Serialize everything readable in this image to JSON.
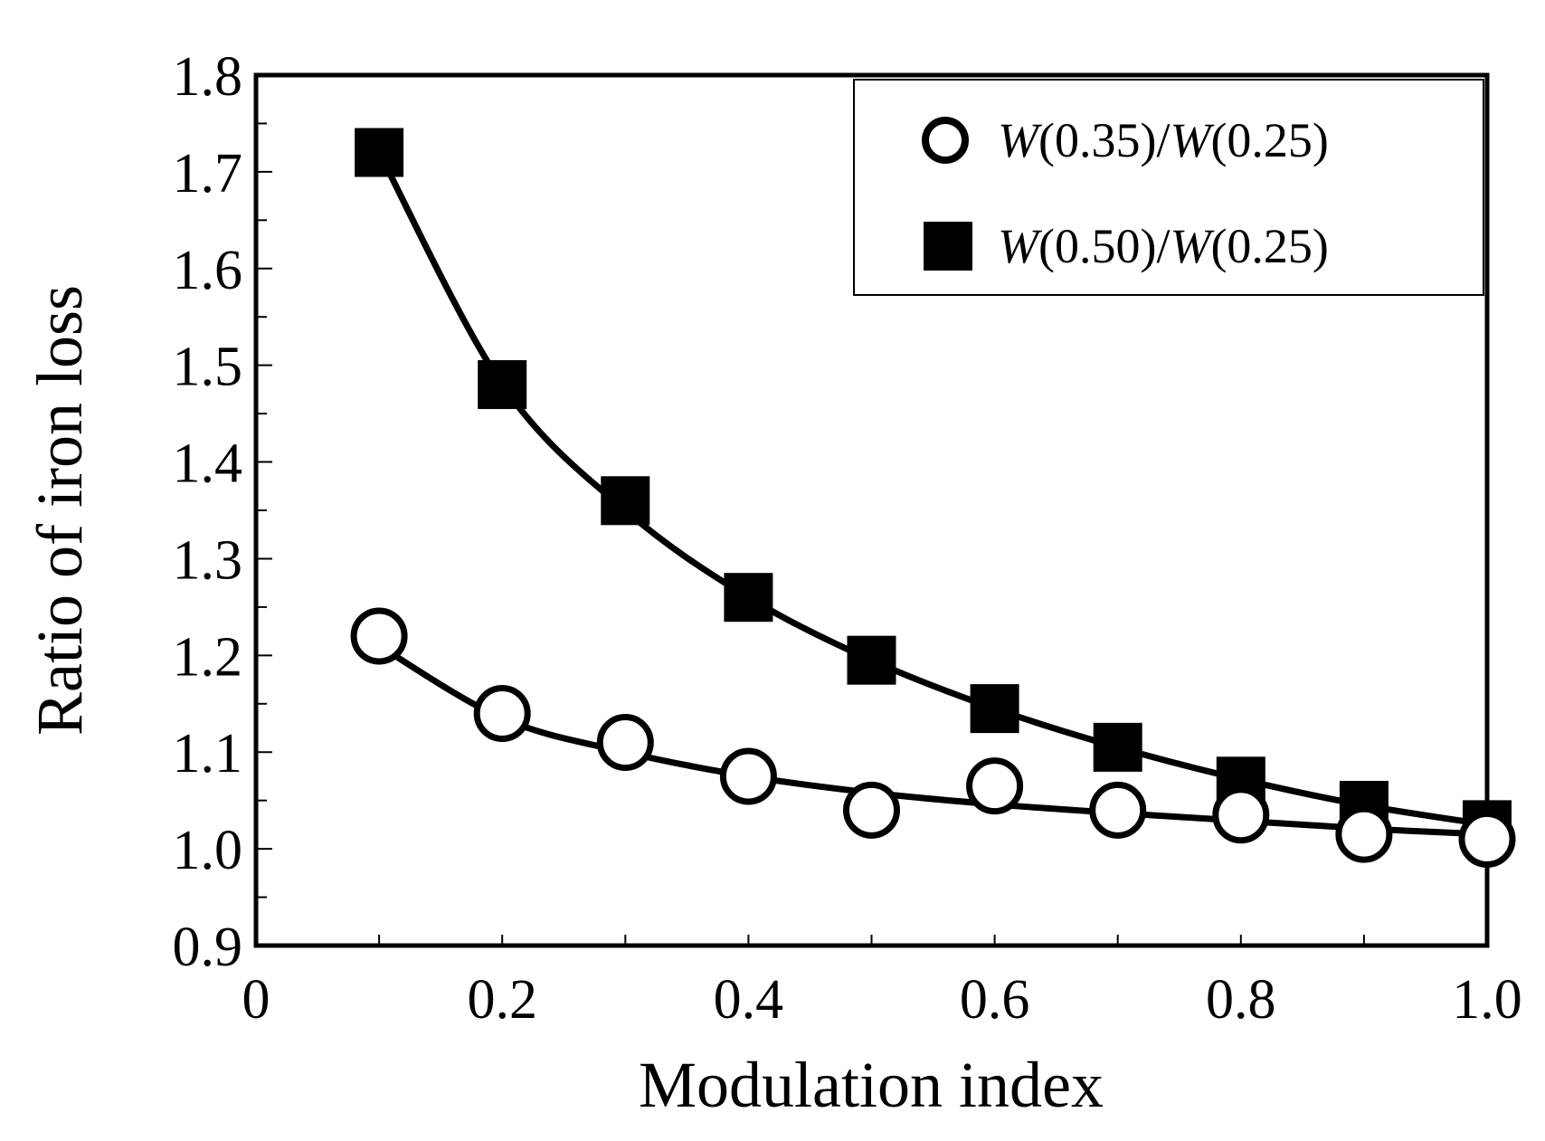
{
  "chart_data": {
    "type": "line",
    "title": "",
    "xlabel": "Modulation index",
    "ylabel": "Ratio of iron loss",
    "xlim": [
      0,
      1.0
    ],
    "ylim": [
      0.9,
      1.8
    ],
    "x_ticks": [
      0,
      0.2,
      0.4,
      0.6,
      0.8,
      1.0
    ],
    "x_tick_labels": [
      "0",
      "0.2",
      "0.4",
      "0.6",
      "0.8",
      "1.0"
    ],
    "y_ticks": [
      0.9,
      1.0,
      1.1,
      1.2,
      1.3,
      1.4,
      1.5,
      1.6,
      1.7,
      1.8
    ],
    "y_tick_labels": [
      "0.9",
      "1.0",
      "1.1",
      "1.2",
      "1.3",
      "1.4",
      "1.5",
      "1.6",
      "1.7",
      "1.8"
    ],
    "grid": false,
    "legend_position": "top-right",
    "series": [
      {
        "name": "W(0.35)/W(0.25)",
        "legend_parts": {
          "w1": "W",
          "arg1": "(0.35)/",
          "w2": "W",
          "arg2": "(0.25)"
        },
        "marker": "open-circle",
        "x": [
          0.1,
          0.2,
          0.3,
          0.4,
          0.5,
          0.6,
          0.7,
          0.8,
          0.9,
          1.0
        ],
        "values": [
          1.22,
          1.14,
          1.11,
          1.075,
          1.04,
          1.065,
          1.04,
          1.035,
          1.015,
          1.01
        ],
        "fit": [
          1.21,
          1.135,
          1.1,
          1.075,
          1.058,
          1.046,
          1.037,
          1.029,
          1.021,
          1.015
        ]
      },
      {
        "name": "W(0.50)/W(0.25)",
        "legend_parts": {
          "w1": "W",
          "arg1": "(0.50)/",
          "w2": "W",
          "arg2": "(0.25)"
        },
        "marker": "filled-square",
        "x": [
          0.1,
          0.2,
          0.3,
          0.4,
          0.5,
          0.6,
          0.7,
          0.8,
          0.9,
          1.0
        ],
        "values": [
          1.72,
          1.48,
          1.36,
          1.26,
          1.195,
          1.145,
          1.105,
          1.07,
          1.045,
          1.025
        ],
        "fit": [
          1.72,
          1.48,
          1.35,
          1.26,
          1.195,
          1.145,
          1.105,
          1.072,
          1.045,
          1.025
        ]
      }
    ]
  }
}
